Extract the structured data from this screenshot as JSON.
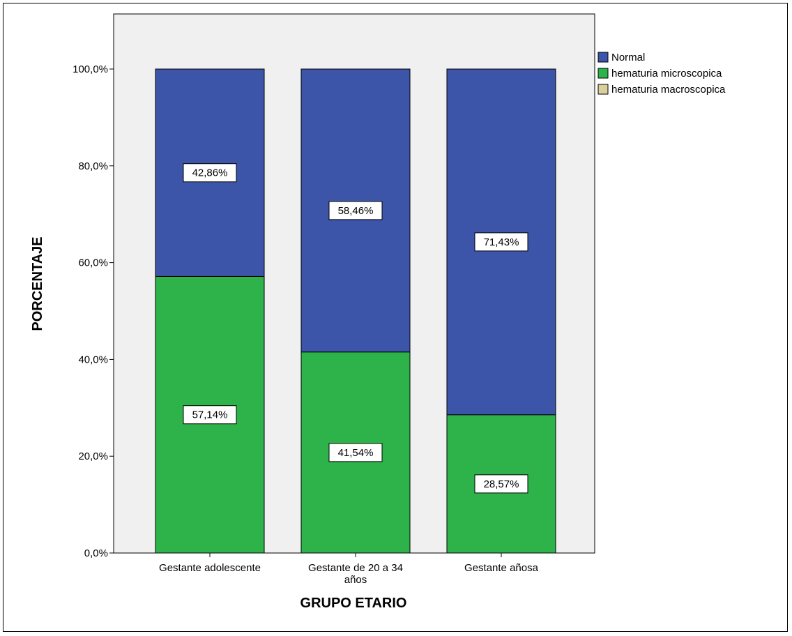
{
  "chart_data": {
    "type": "bar",
    "stacked": true,
    "categories": [
      "Gestante adolescente",
      "Gestante de 20 a 34 años",
      "Gestante añosa"
    ],
    "category_lines": [
      [
        "Gestante adolescente"
      ],
      [
        "Gestante de 20 a 34",
        "años"
      ],
      [
        "Gestante añosa"
      ]
    ],
    "series": [
      {
        "name": "hematuria microscopica",
        "values": [
          57.14,
          41.54,
          28.57
        ],
        "labels": [
          "57,14%",
          "41,54%",
          "28,57%"
        ],
        "color": "#2db34a"
      },
      {
        "name": "Normal",
        "values": [
          42.86,
          58.46,
          71.43
        ],
        "labels": [
          "42,86%",
          "58,46%",
          "71,43%"
        ],
        "color": "#3c55a8"
      }
    ],
    "legend": [
      {
        "name": "Normal",
        "color": "#3c55a8"
      },
      {
        "name": "hematuria microscopica",
        "color": "#2db34a"
      },
      {
        "name": "hematuria macroscopica",
        "color": "#d8cf9c"
      }
    ],
    "legend_position": "top-right",
    "xlabel": "GRUPO ETARIO",
    "ylabel": "PORCENTAJE",
    "ylim": [
      0,
      100
    ],
    "yticks": [
      0,
      20,
      40,
      60,
      80,
      100
    ],
    "ytick_labels": [
      "0,0%",
      "20,0%",
      "40,0%",
      "60,0%",
      "80,0%",
      "100,0%"
    ],
    "plot_background": "#f0f0f0",
    "grid": false
  }
}
